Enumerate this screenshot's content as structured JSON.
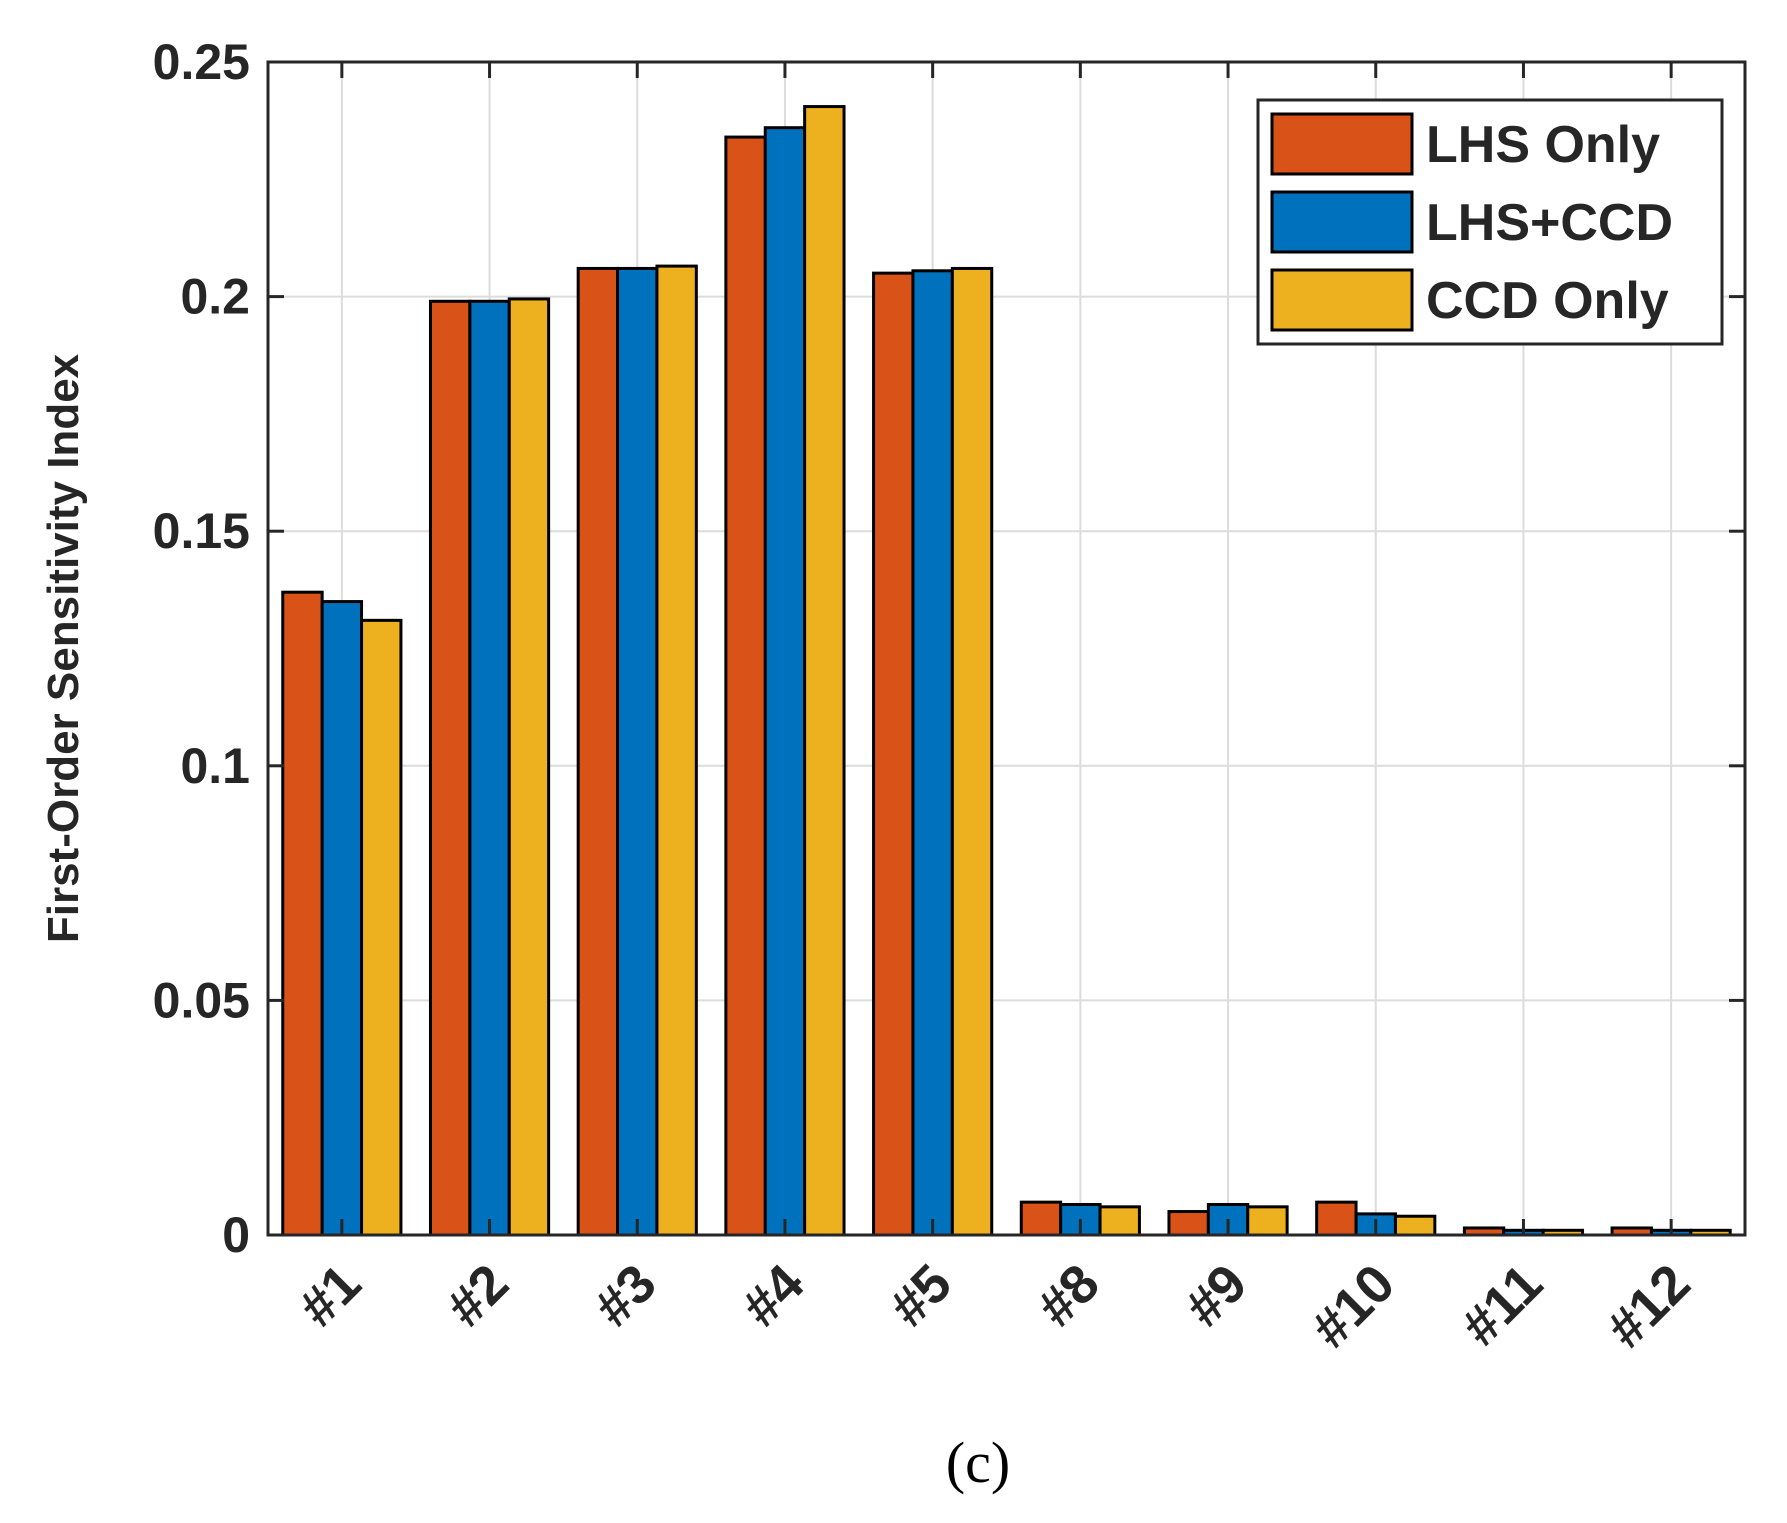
{
  "chart_data": {
    "type": "bar",
    "title": "",
    "xlabel": "",
    "ylabel": "First-Order Sensitivity Index",
    "ylim": [
      0,
      0.25
    ],
    "yticks": [
      0,
      0.05,
      0.1,
      0.15,
      0.2,
      0.25
    ],
    "ytick_labels": [
      "0",
      "0.05",
      "0.1",
      "0.15",
      "0.2",
      "0.25"
    ],
    "grid": true,
    "legend_position": "top-right",
    "categories": [
      "#1",
      "#2",
      "#3",
      "#4",
      "#5",
      "#8",
      "#9",
      "#10",
      "#11",
      "#12"
    ],
    "series": [
      {
        "name": "LHS Only",
        "color": "#D95319",
        "values": [
          0.137,
          0.199,
          0.206,
          0.234,
          0.205,
          0.007,
          0.005,
          0.007,
          0.0015,
          0.0015
        ]
      },
      {
        "name": "LHS+CCD",
        "color": "#0072BD",
        "values": [
          0.135,
          0.199,
          0.206,
          0.236,
          0.2055,
          0.0065,
          0.0065,
          0.0045,
          0.001,
          0.001
        ]
      },
      {
        "name": "CCD Only",
        "color": "#EDB120",
        "values": [
          0.131,
          0.1995,
          0.2065,
          0.2405,
          0.206,
          0.006,
          0.006,
          0.004,
          0.001,
          0.001
        ]
      }
    ]
  },
  "caption": "(c)"
}
